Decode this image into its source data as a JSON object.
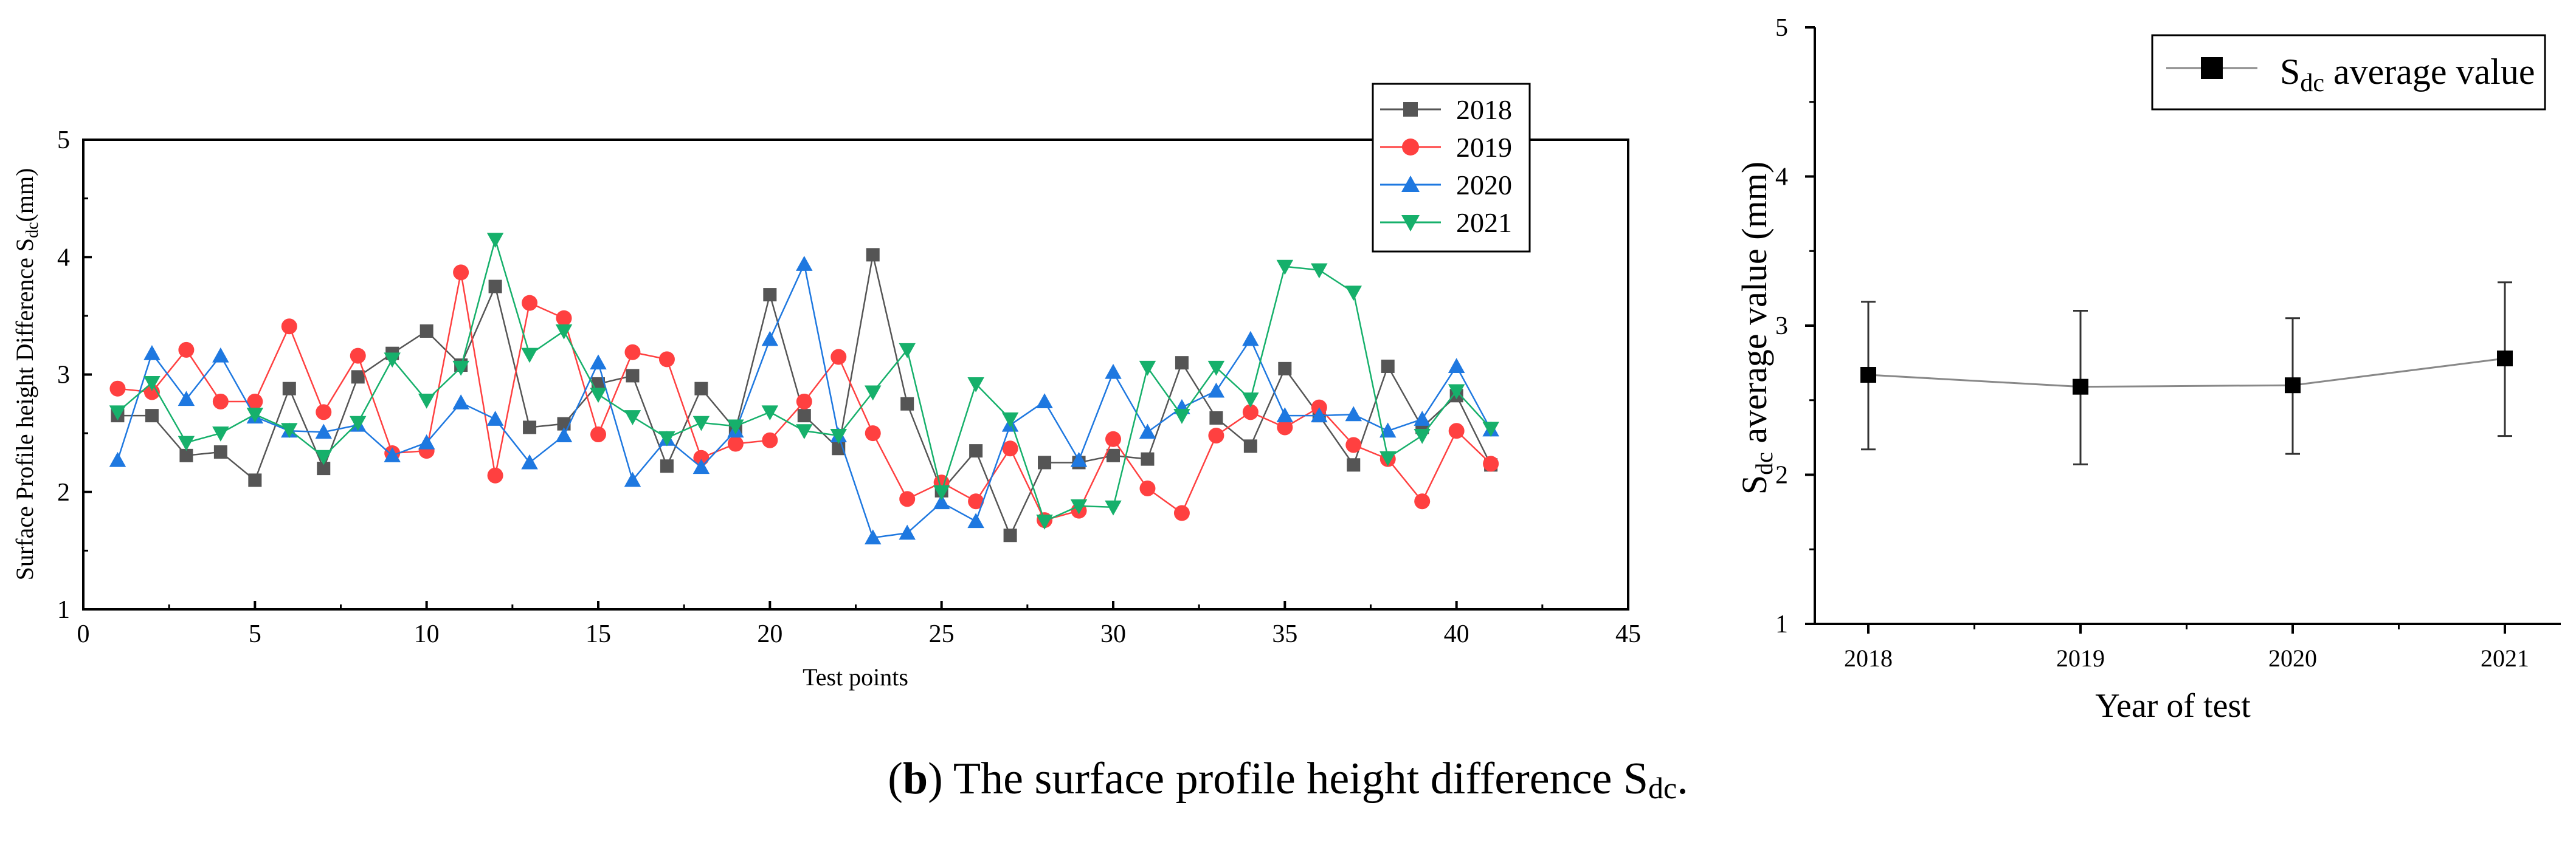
{
  "caption": {
    "label": "b",
    "text_before": "The surface profile height difference S",
    "text_sub": "dc",
    "text_after": "."
  },
  "chart_data": [
    {
      "type": "line",
      "ylabel_main": "Surface Profile height Difference S",
      "ylabel_sub": "dc",
      "ylabel_unit": "(mm)",
      "xlabel": "Test points",
      "xlim": [
        0,
        45
      ],
      "ylim": [
        1,
        5
      ],
      "xticks": [
        "0",
        "5",
        "10",
        "15",
        "20",
        "25",
        "30",
        "35",
        "40",
        "45"
      ],
      "yticks": [
        "1",
        "2",
        "3",
        "4",
        "5"
      ],
      "legend_position": "top-right",
      "x": [
        1,
        2,
        3,
        4,
        5,
        6,
        7,
        8,
        9,
        10,
        11,
        12,
        13,
        14,
        15,
        16,
        17,
        18,
        19,
        20,
        21,
        22,
        23,
        24,
        25,
        26,
        27,
        28,
        29,
        30,
        31,
        32,
        33,
        34,
        35,
        36,
        37,
        38,
        39,
        40,
        41
      ],
      "series": [
        {
          "name": "2018",
          "color": "#555555",
          "marker": "square",
          "values": [
            2.65,
            2.65,
            2.31,
            2.34,
            2.1,
            2.88,
            2.2,
            2.98,
            3.18,
            3.37,
            3.08,
            3.75,
            2.55,
            2.58,
            2.92,
            2.99,
            2.22,
            2.88,
            2.53,
            3.68,
            2.65,
            2.37,
            4.02,
            2.75,
            2.01,
            2.35,
            1.63,
            2.25,
            2.25,
            2.31,
            2.28,
            3.1,
            2.63,
            2.39,
            3.05,
            2.65,
            2.23,
            3.07,
            2.55,
            2.82,
            2.23
          ]
        },
        {
          "name": "2019",
          "color": "#ff4040",
          "marker": "circle",
          "values": [
            2.88,
            2.85,
            3.21,
            2.77,
            2.77,
            3.41,
            2.68,
            3.16,
            2.33,
            2.35,
            3.87,
            2.14,
            3.61,
            3.48,
            2.49,
            3.19,
            3.13,
            2.29,
            2.41,
            2.44,
            2.77,
            3.15,
            2.5,
            1.94,
            2.08,
            1.92,
            2.37,
            1.76,
            1.84,
            2.45,
            2.03,
            1.82,
            2.48,
            2.68,
            2.55,
            2.72,
            2.4,
            2.28,
            1.92,
            2.52,
            2.24
          ]
        },
        {
          "name": "2020",
          "color": "#1e78e0",
          "marker": "triangle-up",
          "values": [
            2.27,
            3.18,
            2.79,
            3.16,
            2.64,
            2.52,
            2.51,
            2.57,
            2.31,
            2.42,
            2.76,
            2.62,
            2.25,
            2.48,
            3.1,
            2.1,
            2.45,
            2.21,
            2.52,
            3.3,
            3.94,
            2.48,
            1.61,
            1.65,
            1.91,
            1.75,
            2.57,
            2.77,
            2.27,
            3.02,
            2.51,
            2.72,
            2.86,
            3.3,
            2.65,
            2.65,
            2.66,
            2.52,
            2.62,
            3.07,
            2.53
          ]
        },
        {
          "name": "2021",
          "color": "#16b06b",
          "marker": "triangle-down",
          "values": [
            2.68,
            2.93,
            2.42,
            2.5,
            2.66,
            2.53,
            2.3,
            2.59,
            3.13,
            2.78,
            3.06,
            4.15,
            3.17,
            3.37,
            2.83,
            2.64,
            2.46,
            2.59,
            2.56,
            2.68,
            2.52,
            2.48,
            2.85,
            3.21,
            2.0,
            2.92,
            2.62,
            1.75,
            1.88,
            1.87,
            3.06,
            2.65,
            3.06,
            2.79,
            3.92,
            3.89,
            3.7,
            2.29,
            2.48,
            2.86,
            2.54
          ]
        }
      ]
    },
    {
      "type": "line",
      "ylabel_main": "S",
      "ylabel_sub": "dc",
      "ylabel_rest": " average value  (mm)",
      "xlabel": "Year of test",
      "categories": [
        "2018",
        "2019",
        "2020",
        "2021"
      ],
      "ylim": [
        1,
        5
      ],
      "yticks": [
        "1",
        "2",
        "3",
        "4",
        "5"
      ],
      "legend_position": "top-right",
      "series": [
        {
          "name_main": "S",
          "name_sub": "dc",
          "name_rest": " average value",
          "color": "#000000",
          "line_color": "#888888",
          "marker": "square",
          "values": [
            2.67,
            2.59,
            2.6,
            2.78
          ],
          "error_low": [
            2.17,
            2.07,
            2.14,
            2.26
          ],
          "error_high": [
            3.16,
            3.1,
            3.05,
            3.29
          ]
        }
      ]
    }
  ]
}
